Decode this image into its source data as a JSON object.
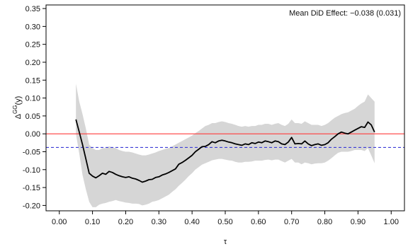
{
  "chart_data": {
    "type": "area",
    "annotation": "Mean DiD Effect: −0.038 (0.031)",
    "xlabel": "τ",
    "ylabel_main": "Δ",
    "ylabel_sup": "GG",
    "ylabel_tail": "(y)",
    "xlim": [
      -0.04,
      1.04
    ],
    "ylim": [
      -0.215,
      0.36
    ],
    "xticks": [
      0.0,
      0.1,
      0.2,
      0.3,
      0.4,
      0.5,
      0.6,
      0.7,
      0.8,
      0.9,
      1.0
    ],
    "xtick_labels": [
      "0.00",
      "0.10",
      "0.20",
      "0.30",
      "0.40",
      "0.50",
      "0.60",
      "0.70",
      "0.80",
      "0.90",
      "1.00"
    ],
    "yticks": [
      -0.2,
      -0.15,
      -0.1,
      -0.05,
      0.0,
      0.05,
      0.1,
      0.15,
      0.2,
      0.25,
      0.3,
      0.35
    ],
    "ytick_labels": [
      "-0.20",
      "-0.15",
      "-0.10",
      "-0.05",
      "0.00",
      "0.05",
      "0.10",
      "0.15",
      "0.20",
      "0.25",
      "0.30",
      "0.35"
    ],
    "hlines": [
      {
        "y": 0.0,
        "style": "solid",
        "color": "#ff3b3b"
      },
      {
        "y": -0.038,
        "style": "dashed",
        "color": "#3b3bd6"
      }
    ],
    "colors": {
      "band": "#d6d6d6",
      "line": "#000000",
      "frame": "#000000"
    },
    "series": [
      {
        "x": [
          0.05,
          0.06,
          0.07,
          0.08,
          0.09,
          0.1,
          0.11,
          0.12,
          0.13,
          0.14,
          0.15,
          0.16,
          0.17,
          0.18,
          0.19,
          0.2,
          0.21,
          0.22,
          0.23,
          0.24,
          0.25,
          0.26,
          0.27,
          0.28,
          0.29,
          0.3,
          0.31,
          0.32,
          0.33,
          0.34,
          0.35,
          0.36,
          0.37,
          0.38,
          0.39,
          0.4,
          0.41,
          0.42,
          0.43,
          0.44,
          0.45,
          0.46,
          0.47,
          0.48,
          0.49,
          0.5,
          0.51,
          0.52,
          0.53,
          0.54,
          0.55,
          0.56,
          0.57,
          0.58,
          0.59,
          0.6,
          0.61,
          0.62,
          0.63,
          0.64,
          0.65,
          0.66,
          0.67,
          0.68,
          0.69,
          0.7,
          0.71,
          0.72,
          0.73,
          0.74,
          0.75,
          0.76,
          0.77,
          0.78,
          0.79,
          0.8,
          0.81,
          0.82,
          0.83,
          0.84,
          0.85,
          0.86,
          0.87,
          0.88,
          0.89,
          0.9,
          0.91,
          0.92,
          0.93,
          0.94,
          0.95
        ],
        "y": [
          0.04,
          0.005,
          -0.03,
          -0.07,
          -0.11,
          -0.118,
          -0.123,
          -0.117,
          -0.11,
          -0.113,
          -0.105,
          -0.108,
          -0.113,
          -0.117,
          -0.12,
          -0.122,
          -0.12,
          -0.124,
          -0.126,
          -0.13,
          -0.135,
          -0.132,
          -0.128,
          -0.127,
          -0.122,
          -0.12,
          -0.115,
          -0.112,
          -0.108,
          -0.103,
          -0.098,
          -0.085,
          -0.08,
          -0.074,
          -0.067,
          -0.06,
          -0.05,
          -0.043,
          -0.036,
          -0.035,
          -0.03,
          -0.022,
          -0.025,
          -0.02,
          -0.018,
          -0.02,
          -0.023,
          -0.025,
          -0.028,
          -0.03,
          -0.032,
          -0.028,
          -0.03,
          -0.025,
          -0.027,
          -0.023,
          -0.025,
          -0.02,
          -0.022,
          -0.025,
          -0.02,
          -0.022,
          -0.028,
          -0.03,
          -0.023,
          -0.01,
          -0.028,
          -0.027,
          -0.028,
          -0.02,
          -0.028,
          -0.033,
          -0.03,
          -0.028,
          -0.032,
          -0.03,
          -0.025,
          -0.015,
          -0.008,
          0.0,
          0.005,
          0.002,
          0.0,
          0.005,
          0.01,
          0.015,
          0.02,
          0.018,
          0.033,
          0.025,
          0.005
        ],
        "lower": [
          0.0,
          -0.055,
          -0.115,
          -0.155,
          -0.19,
          -0.205,
          -0.205,
          -0.198,
          -0.195,
          -0.193,
          -0.19,
          -0.188,
          -0.185,
          -0.188,
          -0.19,
          -0.192,
          -0.193,
          -0.195,
          -0.195,
          -0.196,
          -0.2,
          -0.198,
          -0.195,
          -0.19,
          -0.188,
          -0.185,
          -0.18,
          -0.175,
          -0.17,
          -0.162,
          -0.155,
          -0.145,
          -0.137,
          -0.128,
          -0.118,
          -0.11,
          -0.1,
          -0.093,
          -0.086,
          -0.082,
          -0.078,
          -0.074,
          -0.072,
          -0.07,
          -0.07,
          -0.072,
          -0.074,
          -0.075,
          -0.078,
          -0.08,
          -0.08,
          -0.078,
          -0.078,
          -0.077,
          -0.075,
          -0.075,
          -0.075,
          -0.073,
          -0.072,
          -0.074,
          -0.072,
          -0.072,
          -0.076,
          -0.08,
          -0.075,
          -0.07,
          -0.08,
          -0.08,
          -0.085,
          -0.08,
          -0.082,
          -0.085,
          -0.083,
          -0.082,
          -0.082,
          -0.08,
          -0.075,
          -0.068,
          -0.06,
          -0.053,
          -0.05,
          -0.05,
          -0.05,
          -0.048,
          -0.045,
          -0.045,
          -0.045,
          -0.048,
          -0.04,
          -0.06,
          -0.082
        ],
        "upper": [
          0.14,
          0.09,
          0.055,
          0.015,
          -0.03,
          -0.04,
          -0.045,
          -0.045,
          -0.04,
          -0.04,
          -0.035,
          -0.038,
          -0.04,
          -0.045,
          -0.048,
          -0.05,
          -0.05,
          -0.052,
          -0.055,
          -0.058,
          -0.06,
          -0.06,
          -0.058,
          -0.055,
          -0.052,
          -0.048,
          -0.045,
          -0.042,
          -0.04,
          -0.035,
          -0.03,
          -0.025,
          -0.02,
          -0.015,
          -0.01,
          -0.005,
          0.002,
          0.008,
          0.015,
          0.022,
          0.025,
          0.03,
          0.03,
          0.033,
          0.035,
          0.033,
          0.03,
          0.028,
          0.025,
          0.022,
          0.02,
          0.022,
          0.02,
          0.022,
          0.022,
          0.025,
          0.025,
          0.028,
          0.028,
          0.025,
          0.028,
          0.03,
          0.025,
          0.022,
          0.028,
          0.04,
          0.03,
          0.03,
          0.028,
          0.035,
          0.03,
          0.025,
          0.025,
          0.025,
          0.022,
          0.025,
          0.03,
          0.038,
          0.045,
          0.05,
          0.055,
          0.058,
          0.06,
          0.065,
          0.07,
          0.078,
          0.085,
          0.09,
          0.11,
          0.1,
          0.09
        ]
      }
    ]
  }
}
